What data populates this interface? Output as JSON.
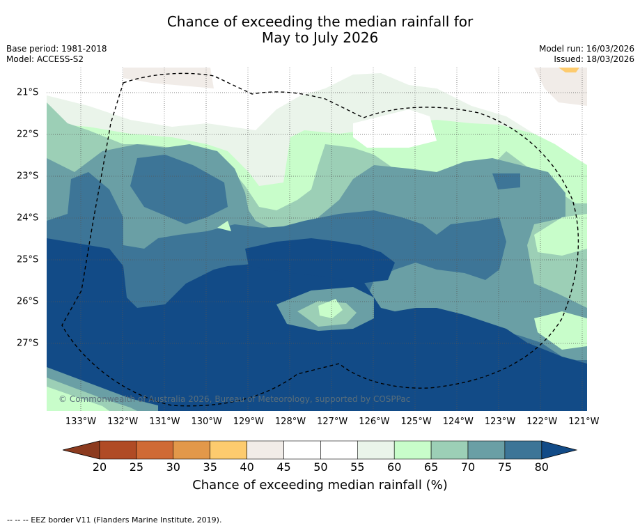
{
  "title": {
    "line1": "Chance of exceeding the median rainfall for",
    "line2": "May to July 2026"
  },
  "meta": {
    "base_period": "Base period: 1981-2018",
    "model": "Model: ACCESS-S2",
    "model_run": "Model run: 16/03/2026",
    "issued": "Issued: 18/03/2026"
  },
  "map": {
    "copyright": "© Commonwealth of Australia 2026, Bureau of Meteorology, supported by COSPPac",
    "x_ticks": [
      "133°W",
      "132°W",
      "131°W",
      "130°W",
      "129°W",
      "128°W",
      "127°W",
      "126°W",
      "125°W",
      "124°W",
      "123°W",
      "122°W",
      "121°W"
    ],
    "y_ticks": [
      "21°S",
      "22°S",
      "23°S",
      "24°S",
      "25°S",
      "26°S",
      "27°S"
    ],
    "lon_range": [
      -133.8,
      -120.9
    ],
    "lat_range": [
      -20.6,
      -28.8
    ],
    "eez_border_label": "EEZ border"
  },
  "colorbar": {
    "ticks": [
      "20",
      "25",
      "30",
      "35",
      "40",
      "45",
      "50",
      "55",
      "60",
      "65",
      "70",
      "75",
      "80"
    ],
    "label": "Chance of exceeding median rainfall (%)",
    "colors": [
      "#8c3b1f",
      "#b04b25",
      "#cf6a35",
      "#e2984a",
      "#fdcb6e",
      "#f1ece8",
      "#ffffff",
      "#ffffff",
      "#eaf4ea",
      "#c8fdca",
      "#9ccfb6",
      "#6a9fa5",
      "#3d7597",
      "#124b87"
    ]
  },
  "footer": "--  --  -- EEZ border V11 (Flanders Marine Institute, 2019)."
}
